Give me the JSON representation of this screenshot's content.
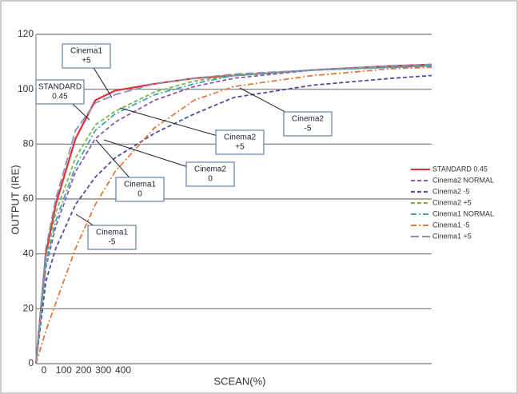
{
  "chart_data": {
    "type": "line",
    "x_label": "SCEAN(%)",
    "y_label": "OUTPUT (IRE)",
    "x": [
      0,
      50,
      100,
      200,
      300,
      400,
      600,
      800,
      1000,
      1400,
      1800,
      2000
    ],
    "xlim": [
      0,
      2000
    ],
    "xticks": [
      0,
      100,
      200,
      300,
      400
    ],
    "ylim": [
      0,
      120
    ],
    "yticks": [
      0,
      20,
      40,
      60,
      80,
      100,
      120
    ],
    "grid": true,
    "series": [
      {
        "name": "STANDARD 0.45",
        "color": "#e0303a",
        "dash": "solid",
        "values": [
          0,
          40,
          58,
          82,
          96,
          99.5,
          102,
          104,
          105,
          107,
          108.5,
          109
        ]
      },
      {
        "name": "Cinema2 NORMAL",
        "color": "#8a5aa8",
        "dash": "dash",
        "values": [
          0,
          35,
          50,
          70,
          82,
          88,
          96,
          101,
          104,
          107,
          108,
          108.5
        ]
      },
      {
        "name": "Cinema2 -5",
        "color": "#4a4f9a",
        "dash": "dash",
        "values": [
          0,
          30,
          42,
          58,
          68,
          75,
          84,
          91,
          97,
          101.5,
          104,
          105
        ]
      },
      {
        "name": "Cinema2 +5",
        "color": "#7ab648",
        "dash": "dash",
        "values": [
          0,
          38,
          55,
          75,
          87,
          92,
          99,
          103,
          105,
          107,
          108,
          108.5
        ]
      },
      {
        "name": "Cinema1 NORMAL",
        "color": "#3aa6b8",
        "dash": "dashdot",
        "values": [
          0,
          36,
          52,
          72,
          85,
          91,
          98,
          102,
          105,
          107,
          108,
          108.5
        ]
      },
      {
        "name": "Cinema1 -5",
        "color": "#e07a3a",
        "dash": "dashdot",
        "values": [
          0,
          12,
          22,
          42,
          58,
          70,
          86,
          96,
          101,
          105,
          107.5,
          108
        ]
      },
      {
        "name": "Cinema1 +5",
        "color": "#8a8fb8",
        "dash": "longdash",
        "values": [
          0,
          42,
          60,
          85,
          95,
          98,
          102,
          104,
          105.5,
          107,
          108.5,
          109
        ]
      }
    ],
    "annotations": [
      {
        "lines": [
          "Cinema1",
          "+5"
        ]
      },
      {
        "lines": [
          "STANDARD",
          "0.45"
        ]
      },
      {
        "lines": [
          "Cinema2",
          "+5"
        ]
      },
      {
        "lines": [
          "Cinema2",
          "-5"
        ]
      },
      {
        "lines": [
          "Cinema2",
          "0"
        ]
      },
      {
        "lines": [
          "Cinema1",
          "0"
        ]
      },
      {
        "lines": [
          "Cinema1",
          "-5"
        ]
      }
    ]
  }
}
